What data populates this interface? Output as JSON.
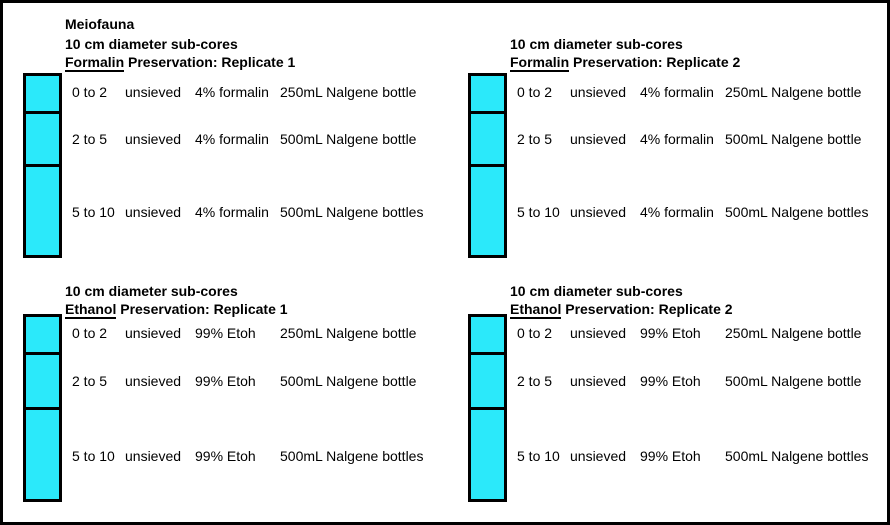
{
  "figure": {
    "title": "Meiofauna",
    "background_color": "#ffffff",
    "line_color": "#000000"
  },
  "core_bar": {
    "fill_color": "#2be9fa",
    "outline_color": "#000000",
    "depth_segments_cm": [
      "0 to 2",
      "2 to 5",
      "5 to 10"
    ]
  },
  "panels": [
    {
      "name": "formalin-replicate-1",
      "subtitle": "10 cm diameter sub-cores",
      "preservation_word": "Formalin",
      "preservation_rest": " Preservation: Replicate 1",
      "rows": [
        {
          "depth": "0 to 2",
          "sieve": "unsieved",
          "preservative": "4% formalin",
          "container": "250mL Nalgene bottle"
        },
        {
          "depth": "2 to 5",
          "sieve": "unsieved",
          "preservative": "4% formalin",
          "container": "500mL Nalgene bottle"
        },
        {
          "depth": "5 to 10",
          "sieve": "unsieved",
          "preservative": "4% formalin",
          "container": "500mL Nalgene bottles"
        }
      ]
    },
    {
      "name": "formalin-replicate-2",
      "subtitle": "10 cm diameter sub-cores",
      "preservation_word": "Formalin",
      "preservation_rest": " Preservation: Replicate 2",
      "rows": [
        {
          "depth": "0 to 2",
          "sieve": "unsieved",
          "preservative": "4% formalin",
          "container": "250mL Nalgene bottle"
        },
        {
          "depth": "2 to 5",
          "sieve": "unsieved",
          "preservative": "4% formalin",
          "container": "500mL Nalgene bottle"
        },
        {
          "depth": "5 to 10",
          "sieve": "unsieved",
          "preservative": "4% formalin",
          "container": "500mL Nalgene bottles"
        }
      ]
    },
    {
      "name": "ethanol-replicate-1",
      "subtitle": "10 cm diameter sub-cores",
      "preservation_word": "Ethanol",
      "preservation_rest": " Preservation: Replicate 1",
      "rows": [
        {
          "depth": "0 to 2",
          "sieve": "unsieved",
          "preservative": "99% Etoh",
          "container": "250mL Nalgene bottle"
        },
        {
          "depth": "2 to 5",
          "sieve": "unsieved",
          "preservative": "99% Etoh",
          "container": "500mL Nalgene bottle"
        },
        {
          "depth": "5 to 10",
          "sieve": "unsieved",
          "preservative": "99% Etoh",
          "container": "500mL Nalgene bottles"
        }
      ]
    },
    {
      "name": "ethanol-replicate-2",
      "subtitle": "10 cm diameter sub-cores",
      "preservation_word": "Ethanol",
      "preservation_rest": " Preservation: Replicate 2",
      "rows": [
        {
          "depth": "0 to 2",
          "sieve": "unsieved",
          "preservative": "99% Etoh",
          "container": "250mL Nalgene bottle"
        },
        {
          "depth": "2 to 5",
          "sieve": "unsieved",
          "preservative": "99% Etoh",
          "container": "500mL Nalgene bottle"
        },
        {
          "depth": "5 to 10",
          "sieve": "unsieved",
          "preservative": "99% Etoh",
          "container": "500mL Nalgene bottles"
        }
      ]
    }
  ]
}
